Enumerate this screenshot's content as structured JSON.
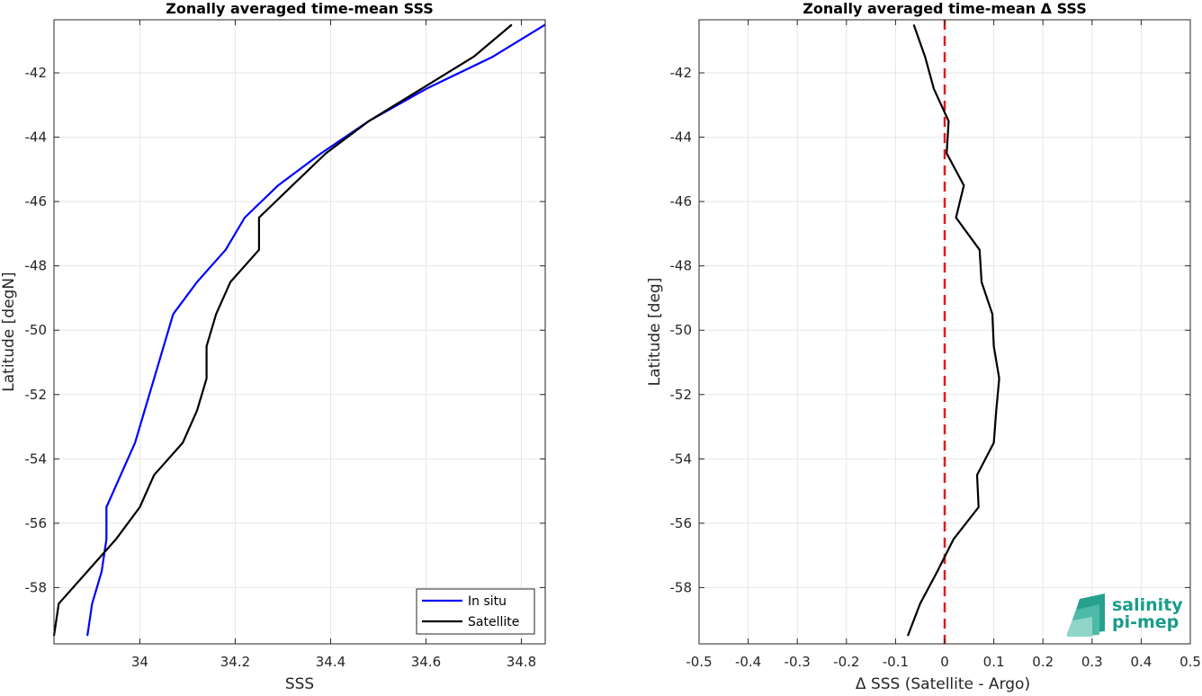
{
  "chart_data": [
    {
      "type": "line",
      "title": "Zonally averaged time-mean SSS",
      "xlabel": "SSS",
      "ylabel": "Latitude [degN]",
      "xlim": [
        33.82,
        34.85
      ],
      "ylim": [
        -59.75,
        -40.35
      ],
      "xticks": [
        "34",
        "34.2",
        "34.4",
        "34.6",
        "34.8"
      ],
      "yticks": [
        "-42",
        "-44",
        "-46",
        "-48",
        "-50",
        "-52",
        "-54",
        "-56",
        "-58"
      ],
      "grid": true,
      "legend_position": "bottom-right",
      "series": [
        {
          "name": "In situ",
          "color": "#0000ff",
          "points": [
            [
              34.85,
              -40.5
            ],
            [
              34.74,
              -41.5
            ],
            [
              34.6,
              -42.5
            ],
            [
              34.48,
              -43.5
            ],
            [
              34.38,
              -44.5
            ],
            [
              34.29,
              -45.5
            ],
            [
              34.22,
              -46.5
            ],
            [
              34.18,
              -47.5
            ],
            [
              34.12,
              -48.5
            ],
            [
              34.07,
              -49.5
            ],
            [
              34.05,
              -50.5
            ],
            [
              34.03,
              -51.5
            ],
            [
              34.01,
              -52.5
            ],
            [
              33.99,
              -53.5
            ],
            [
              33.96,
              -54.5
            ],
            [
              33.93,
              -55.5
            ],
            [
              33.93,
              -56.5
            ],
            [
              33.92,
              -57.5
            ],
            [
              33.9,
              -58.5
            ],
            [
              33.89,
              -59.5
            ]
          ]
        },
        {
          "name": "Satellite",
          "color": "#000000",
          "points": [
            [
              34.78,
              -40.5
            ],
            [
              34.7,
              -41.5
            ],
            [
              34.59,
              -42.5
            ],
            [
              34.48,
              -43.5
            ],
            [
              34.39,
              -44.5
            ],
            [
              34.32,
              -45.5
            ],
            [
              34.25,
              -46.5
            ],
            [
              34.25,
              -47.5
            ],
            [
              34.19,
              -48.5
            ],
            [
              34.16,
              -49.5
            ],
            [
              34.14,
              -50.5
            ],
            [
              34.14,
              -51.5
            ],
            [
              34.12,
              -52.5
            ],
            [
              34.09,
              -53.5
            ],
            [
              34.03,
              -54.5
            ],
            [
              34.0,
              -55.5
            ],
            [
              33.95,
              -56.5
            ],
            [
              33.89,
              -57.5
            ],
            [
              33.83,
              -58.5
            ],
            [
              33.82,
              -59.5
            ]
          ]
        }
      ]
    },
    {
      "type": "line",
      "title": "Zonally averaged time-mean Δ SSS",
      "xlabel": "Δ SSS (Satellite - Argo)",
      "ylabel": "Latitude [deg]",
      "xlim": [
        -0.5,
        0.5
      ],
      "ylim": [
        -59.75,
        -40.35
      ],
      "xticks": [
        "-0.5",
        "-0.4",
        "-0.3",
        "-0.2",
        "-0.1",
        "0",
        "0.1",
        "0.2",
        "0.3",
        "0.4",
        "0.5"
      ],
      "yticks": [
        "-42",
        "-44",
        "-46",
        "-48",
        "-50",
        "-52",
        "-54",
        "-56",
        "-58"
      ],
      "grid": true,
      "series": [
        {
          "color": "#000000",
          "points": [
            [
              -0.063,
              -40.5
            ],
            [
              -0.04,
              -41.5
            ],
            [
              -0.022,
              -42.5
            ],
            [
              0.008,
              -43.5
            ],
            [
              0.004,
              -44.5
            ],
            [
              0.039,
              -45.5
            ],
            [
              0.023,
              -46.5
            ],
            [
              0.071,
              -47.5
            ],
            [
              0.075,
              -48.5
            ],
            [
              0.097,
              -49.5
            ],
            [
              0.1,
              -50.5
            ],
            [
              0.111,
              -51.5
            ],
            [
              0.105,
              -52.5
            ],
            [
              0.1,
              -53.5
            ],
            [
              0.066,
              -54.5
            ],
            [
              0.069,
              -55.5
            ],
            [
              0.018,
              -56.5
            ],
            [
              -0.015,
              -57.5
            ],
            [
              -0.05,
              -58.5
            ],
            [
              -0.075,
              -59.5
            ]
          ]
        }
      ],
      "reference_line": {
        "x": 0,
        "color": "#e31a1c",
        "style": "dashed"
      }
    }
  ],
  "logo": {
    "line1": "salinity",
    "line2": "pi-mep"
  }
}
